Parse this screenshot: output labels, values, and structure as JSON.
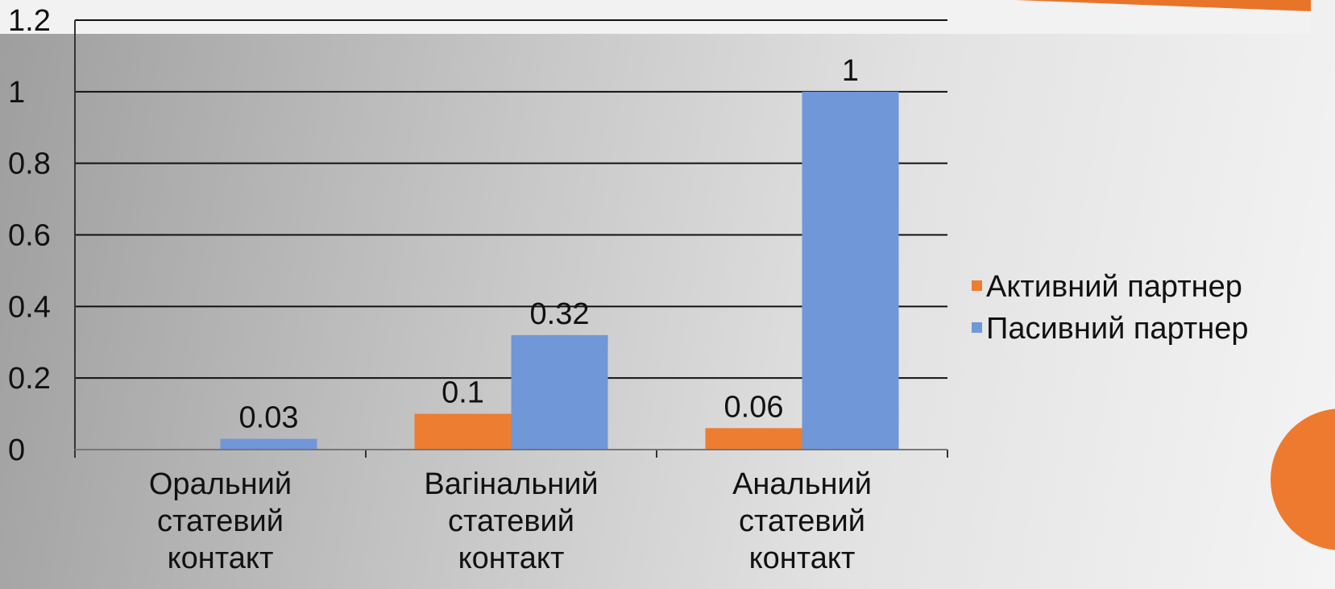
{
  "chart_data": {
    "type": "bar",
    "categories": [
      "Оральний\nстатевий\nконтакт",
      "Вагінальний\nстатевий\nконтакт",
      "Анальний\nстатевий\nконтакт"
    ],
    "series": [
      {
        "name": "Активний партнер",
        "color": "#ed7d31",
        "values": [
          null,
          0.1,
          0.06
        ]
      },
      {
        "name": "Пасивний партнер",
        "color": "#7097d8",
        "values": [
          0.03,
          0.32,
          1
        ]
      }
    ],
    "ylim": [
      0,
      1.2
    ],
    "yticks": [
      0,
      0.2,
      0.4,
      0.6,
      0.8,
      1,
      1.2
    ],
    "grid": true,
    "legend": "right"
  }
}
